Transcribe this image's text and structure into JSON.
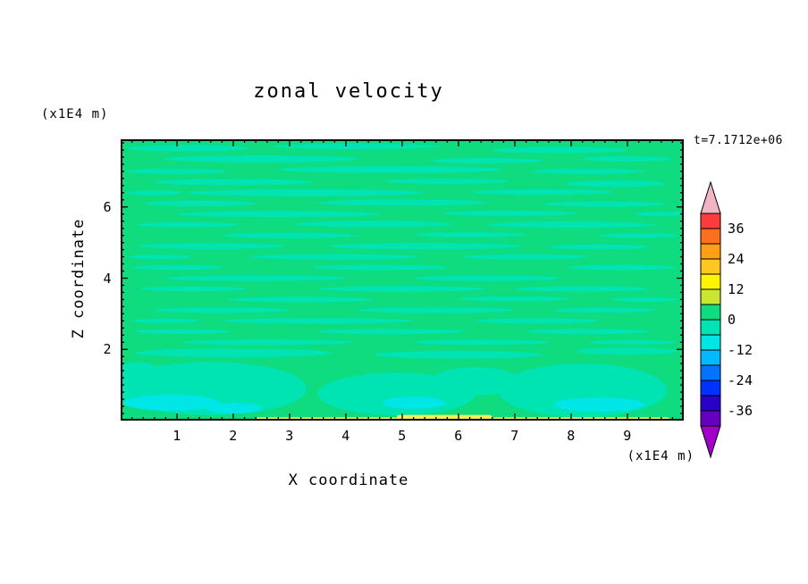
{
  "page": {
    "background": "#ffffff"
  },
  "chart_data": {
    "type": "heatmap",
    "subtype": "filled-contour",
    "title": "zonal velocity",
    "xlabel": "X coordinate",
    "ylabel": "Z coordinate",
    "x_axis_units": "(x1E4 m)",
    "y_axis_units": "(x1E4 m)",
    "time_annotation": "t=7.1712e+06",
    "xlim": [
      0,
      10
    ],
    "ylim": [
      0,
      7.9
    ],
    "x_ticks": [
      1,
      2,
      3,
      4,
      5,
      6,
      7,
      8,
      9
    ],
    "y_ticks": [
      2,
      4,
      6
    ],
    "minor_tick_step": 0.2,
    "grid": false,
    "colorbar": {
      "labeled_levels": [
        36,
        24,
        12,
        0,
        -12,
        -24,
        -36
      ],
      "level_step": 6,
      "segment_colors_top_to_bottom": [
        "#fa3c3c",
        "#ff701e",
        "#ffa014",
        "#ffc81e",
        "#fff500",
        "#c8e632",
        "#0fdb7f",
        "#00e3b2",
        "#00e6e6",
        "#00b9ff",
        "#0073ff",
        "#0032ff",
        "#2800c8",
        "#6400be"
      ],
      "over_color": "#f0b4c3",
      "under_color": "#a000c8"
    },
    "field": {
      "description": "zonal velocity field, values mostly between -6 and +6 forming horizontal streaks",
      "base_color": "#0fdb7f",
      "streak_color": "#00e3b2",
      "cyan_color": "#00e6e6",
      "yellow_color": "#f2ef5c",
      "streaks": [
        [
          1.2,
          7.65,
          2.2,
          0.18
        ],
        [
          4.2,
          7.7,
          3.0,
          0.15
        ],
        [
          7.8,
          7.6,
          2.4,
          0.18
        ],
        [
          2.5,
          7.35,
          3.5,
          0.2
        ],
        [
          6.5,
          7.3,
          2.0,
          0.15
        ],
        [
          9.0,
          7.35,
          1.6,
          0.15
        ],
        [
          1.0,
          7.0,
          1.8,
          0.15
        ],
        [
          4.8,
          7.05,
          4.0,
          0.2
        ],
        [
          8.3,
          7.0,
          2.0,
          0.15
        ],
        [
          2.0,
          6.7,
          2.8,
          0.18
        ],
        [
          5.8,
          6.72,
          2.2,
          0.15
        ],
        [
          8.8,
          6.65,
          1.8,
          0.18
        ],
        [
          3.3,
          6.4,
          4.2,
          0.2
        ],
        [
          7.5,
          6.42,
          2.5,
          0.16
        ],
        [
          0.6,
          6.4,
          1.0,
          0.14
        ],
        [
          1.4,
          6.1,
          2.0,
          0.16
        ],
        [
          5.0,
          6.12,
          3.0,
          0.18
        ],
        [
          8.6,
          6.08,
          2.2,
          0.15
        ],
        [
          2.8,
          5.8,
          3.6,
          0.18
        ],
        [
          6.9,
          5.82,
          2.4,
          0.15
        ],
        [
          9.6,
          5.8,
          0.9,
          0.13
        ],
        [
          1.2,
          5.5,
          1.8,
          0.15
        ],
        [
          4.5,
          5.52,
          2.8,
          0.18
        ],
        [
          8.0,
          5.5,
          3.0,
          0.18
        ],
        [
          3.0,
          5.2,
          2.4,
          0.16
        ],
        [
          6.2,
          5.22,
          2.0,
          0.14
        ],
        [
          9.2,
          5.2,
          1.4,
          0.14
        ],
        [
          1.6,
          4.9,
          2.6,
          0.16
        ],
        [
          5.4,
          4.9,
          3.4,
          0.18
        ],
        [
          8.5,
          4.88,
          1.8,
          0.14
        ],
        [
          3.8,
          4.6,
          3.0,
          0.16
        ],
        [
          7.2,
          4.6,
          2.2,
          0.15
        ],
        [
          0.7,
          4.6,
          1.1,
          0.13
        ],
        [
          1.0,
          4.3,
          1.6,
          0.14
        ],
        [
          4.6,
          4.3,
          2.4,
          0.15
        ],
        [
          8.9,
          4.3,
          1.9,
          0.15
        ],
        [
          2.4,
          4.0,
          3.2,
          0.16
        ],
        [
          6.5,
          4.0,
          2.6,
          0.16
        ],
        [
          1.3,
          3.7,
          1.9,
          0.14
        ],
        [
          5.0,
          3.7,
          3.0,
          0.16
        ],
        [
          8.2,
          3.7,
          2.4,
          0.15
        ],
        [
          3.2,
          3.4,
          2.6,
          0.15
        ],
        [
          7.0,
          3.42,
          2.0,
          0.14
        ],
        [
          9.3,
          3.4,
          1.2,
          0.13
        ],
        [
          1.8,
          3.1,
          2.4,
          0.15
        ],
        [
          5.6,
          3.1,
          2.8,
          0.16
        ],
        [
          8.6,
          3.1,
          1.8,
          0.14
        ],
        [
          3.5,
          2.8,
          3.4,
          0.16
        ],
        [
          7.4,
          2.8,
          2.2,
          0.15
        ],
        [
          0.8,
          2.8,
          1.2,
          0.13
        ],
        [
          1.1,
          2.5,
          1.7,
          0.14
        ],
        [
          4.8,
          2.5,
          2.6,
          0.15
        ],
        [
          8.3,
          2.5,
          2.2,
          0.15
        ],
        [
          2.6,
          2.2,
          3.0,
          0.16
        ],
        [
          6.4,
          2.2,
          2.4,
          0.15
        ],
        [
          9.1,
          2.2,
          1.5,
          0.13
        ],
        [
          2.0,
          1.9,
          3.5,
          0.25
        ],
        [
          6.0,
          1.85,
          3.0,
          0.22
        ],
        [
          9.0,
          1.95,
          1.8,
          0.2
        ],
        [
          1.6,
          0.9,
          3.4,
          1.5
        ],
        [
          4.9,
          0.75,
          2.8,
          1.2
        ],
        [
          8.2,
          0.85,
          3.0,
          1.5
        ],
        [
          6.3,
          1.1,
          1.6,
          0.8
        ],
        [
          0.3,
          1.2,
          1.0,
          0.9
        ]
      ],
      "cyan_patches": [
        [
          0.9,
          0.5,
          1.7,
          0.45
        ],
        [
          2.0,
          0.35,
          1.0,
          0.3
        ],
        [
          5.2,
          0.5,
          1.1,
          0.35
        ],
        [
          8.5,
          0.45,
          1.6,
          0.4
        ]
      ],
      "yellow_strips": [
        [
          2.4,
          4.9,
          0.09
        ],
        [
          4.9,
          6.6,
          0.16
        ],
        [
          6.6,
          9.75,
          0.09
        ]
      ]
    }
  }
}
